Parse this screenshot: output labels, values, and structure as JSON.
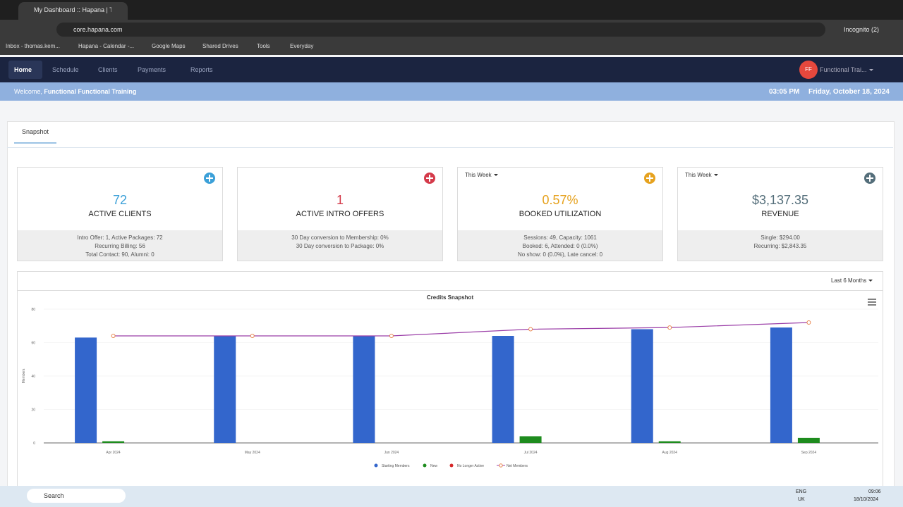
{
  "browser": {
    "tab_title": "My Dashboard :: Hapana | Take",
    "url": "core.hapana.com",
    "incognito": "Incognito (2)",
    "bookmarks": [
      "Inbox - thomas.kem...",
      "Hapana - Calendar -...",
      "Google Maps",
      "Shared Drives",
      "Tools",
      "Everyday"
    ]
  },
  "nav": {
    "items": [
      "Home",
      "Schedule",
      "Clients",
      "Payments",
      "Reports"
    ],
    "user_initials": "FF",
    "user_name": "Functional Trai..."
  },
  "welcome": {
    "greeting": "Welcome,",
    "name": "Functional Functional Training",
    "time": "03:05 PM",
    "date": "Friday, October 18, 2024"
  },
  "tabs": [
    "Snapshot"
  ],
  "cards": [
    {
      "value": "72",
      "label": "ACTIVE CLIENTS",
      "color": "#3ba0d8",
      "details": [
        "Intro Offer: 1, Active Packages: 72",
        "Recurring Billing: 56",
        "Total Contact: 90, Alumni: 0"
      ]
    },
    {
      "value": "1",
      "label": "ACTIVE INTRO OFFERS",
      "color": "#d43a4a",
      "details": [
        "30 Day conversion to Membership: 0%",
        "30 Day conversion to Package: 0%"
      ]
    },
    {
      "filter": "This Week",
      "value": "0.57%",
      "label": "BOOKED UTILIZATION",
      "color": "#e6a21e",
      "details": [
        "Sessions: 49, Capacity: 1061",
        "Booked: 6, Attended: 0 (0.0%)",
        "No show: 0 (0.0%), Late cancel: 0"
      ]
    },
    {
      "filter": "This Week",
      "value": "$3,137.35",
      "label": "REVENUE",
      "color": "#546e7a",
      "details": [
        "Single: $294.00",
        "Recurring: $2,843.35"
      ]
    }
  ],
  "range": "Last 6 Months",
  "chart_data": {
    "type": "combo",
    "title": "Credits Snapshot",
    "y_label": "Members",
    "categories": [
      "Apr 2024",
      "May 2024",
      "Jun 2024",
      "Jul 2024",
      "Aug 2024",
      "Sep 2024"
    ],
    "ylim": [
      0,
      80
    ],
    "yticks": [
      0,
      20,
      40,
      60,
      80
    ],
    "grid": true,
    "series": [
      {
        "name": "Starting Members",
        "type": "bar",
        "color": "#3366cc",
        "values": [
          63,
          64,
          64,
          64,
          68,
          69
        ]
      },
      {
        "name": "New",
        "type": "bar",
        "color": "#1e8c1e",
        "values": [
          1,
          0,
          0,
          4,
          1,
          3
        ]
      },
      {
        "name": "No Longer Active",
        "type": "bar",
        "color": "#d62728",
        "values": [
          0,
          0,
          0,
          0,
          0,
          0
        ]
      },
      {
        "name": "Net Members",
        "type": "line",
        "color": "#9b3fa8",
        "marker_color": "#e8834a",
        "values": [
          64,
          64,
          64,
          68,
          69,
          72
        ]
      }
    ]
  },
  "taskbar": {
    "search": "Search",
    "lang": "ENG",
    "region": "UK",
    "time": "09:06",
    "date": "18/10/2024"
  }
}
